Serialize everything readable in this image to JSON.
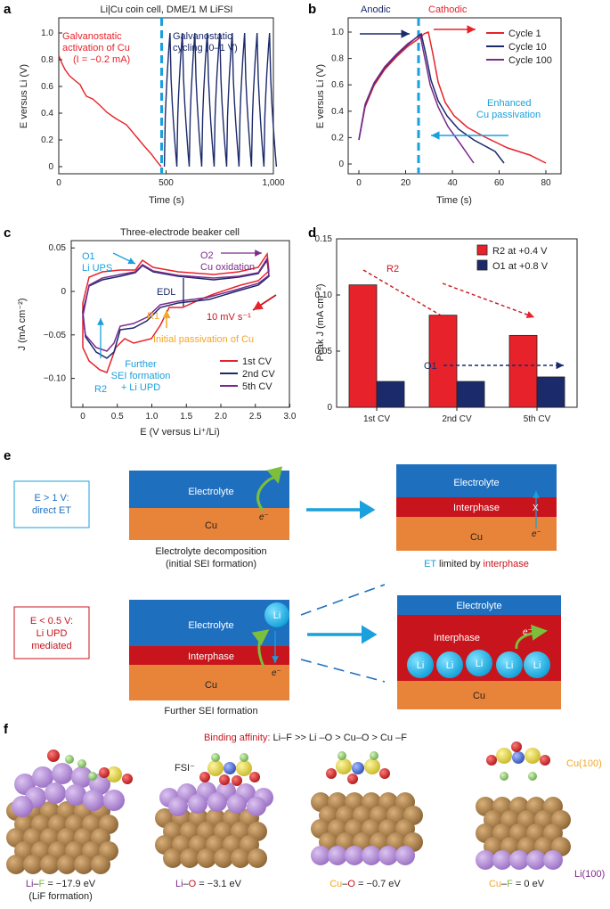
{
  "panel_letters": {
    "a": "a",
    "b": "b",
    "c": "c",
    "d": "d",
    "e": "e",
    "f": "f"
  },
  "colors": {
    "red": "#e8222a",
    "navy": "#1b2a6b",
    "purple": "#7b2a8e",
    "cyan": "#1aa0dc",
    "orange": "#f5a623",
    "cu": "#e8843a",
    "electrolyte": "#1f6fbf",
    "interphase": "#c8141c",
    "li": "#1cb4ec",
    "green": "#7cbf3a",
    "cu_atom": "#b48a55",
    "li_atom": "#b48fd6",
    "o_atom": "#d62828",
    "s_atom": "#e8d84a",
    "n_atom": "#4a6fd6",
    "f_atom": "#9fd67a"
  },
  "panel_a": {
    "title": "Li|Cu coin cell, DME/1 M LiFSI",
    "ann_left_1": "Galvanostatic",
    "ann_left_2": "activation of Cu",
    "ann_left_3": "(I = −0.2 mA)",
    "ann_right_1": "Galvanostatic",
    "ann_right_2": "cycling (0–1 V)",
    "xlabel": "Time (s)",
    "ylabel": "E versus Li (V)",
    "xticks": [
      "0",
      "500",
      "1,000"
    ],
    "yticks": [
      "0",
      "0.2",
      "0.4",
      "0.6",
      "0.8",
      "1.0"
    ]
  },
  "panel_b": {
    "label_anodic": "Anodic",
    "label_cathodic": "Cathodic",
    "annotation_1": "Enhanced",
    "annotation_2": "Cu passivation",
    "xlabel": "Time (s)",
    "ylabel": "E versus Li (V)",
    "xticks": [
      "0",
      "20",
      "40",
      "60",
      "80"
    ],
    "yticks": [
      "0",
      "0.2",
      "0.4",
      "0.6",
      "0.8",
      "1.0"
    ],
    "legend": [
      "Cycle 1",
      "Cycle 10",
      "Cycle 100"
    ]
  },
  "panel_c": {
    "title": "Three-electrode beaker cell",
    "ann_o1_1": "O1",
    "ann_o1_2": "Li UPS",
    "ann_o2_1": "O2",
    "ann_o2_2": "Cu oxidation",
    "ann_edl": "EDL",
    "ann_r1": "R1",
    "ann_rate": "10 mV s⁻¹",
    "ann_passiv": "Initial passivation of Cu",
    "ann_further_1": "Further",
    "ann_further_2": "SEI formation",
    "ann_further_3": "+ Li UPD",
    "ann_r2": "R2",
    "xlabel": "E (V versus Li⁺/Li)",
    "ylabel": "J (mA cm⁻²)",
    "xticks": [
      "0",
      "0.5",
      "1.0",
      "1.5",
      "2.0",
      "2.5",
      "3.0"
    ],
    "yticks": [
      "0.05",
      "0",
      "−0.05",
      "−0.10"
    ],
    "legend": [
      "1st CV",
      "2nd CV",
      "5th CV"
    ]
  },
  "chart_data": {
    "type": "bar",
    "categories": [
      "1st CV",
      "2nd CV",
      "5th CV"
    ],
    "series": [
      {
        "name": "R2 at +0.4 V",
        "values": [
          0.109,
          0.082,
          0.064
        ]
      },
      {
        "name": "O1 at +0.8 V",
        "values": [
          0.023,
          0.023,
          0.027
        ]
      }
    ],
    "ylabel": "Peak J (mA cm⁻²)",
    "ylim": [
      0,
      0.15
    ],
    "yticks": [
      "0",
      "0.05",
      "0.10",
      "0.15"
    ],
    "annotations": [
      "R2",
      "O1"
    ],
    "legend_position": "top-right"
  },
  "panel_e": {
    "box1_1": "E > 1 V:",
    "box1_2": "direct ET",
    "electrolyte": "Electrolyte",
    "cu": "Cu",
    "interphase": "Interphase",
    "electron": "e⁻",
    "x_mark": "X",
    "caption1_1": "Electrolyte decomposition",
    "caption1_2": "(initial SEI formation)",
    "caption2_a": "ET",
    "caption2_b": " limited by ",
    "caption2_c": "interphase",
    "box2_1": "E < 0.5 V:",
    "box2_2": "Li UPD",
    "box2_3": "mediated",
    "li": "Li",
    "caption3": "Further SEI formation"
  },
  "panel_f": {
    "title_a": "Binding affinity: ",
    "title_b": "Li–F >> Li –O > Cu–O > Cu –F",
    "fsi": "FSI⁻",
    "cu100": "Cu(100)",
    "li100": "Li(100)",
    "cap1_a": "Li",
    "cap1_b": "–",
    "cap1_c": "F",
    "cap1_d": " = −17.9 eV",
    "cap1_e": "(LiF formation)",
    "cap2_a": "Li",
    "cap2_b": "–",
    "cap2_c": "O",
    "cap2_d": " = −3.1 eV",
    "cap3_a": "Cu",
    "cap3_b": "–",
    "cap3_c": "O",
    "cap3_d": " = −0.7 eV",
    "cap4_a": "Cu",
    "cap4_b": "–",
    "cap4_c": "F",
    "cap4_d": " = 0 eV"
  }
}
